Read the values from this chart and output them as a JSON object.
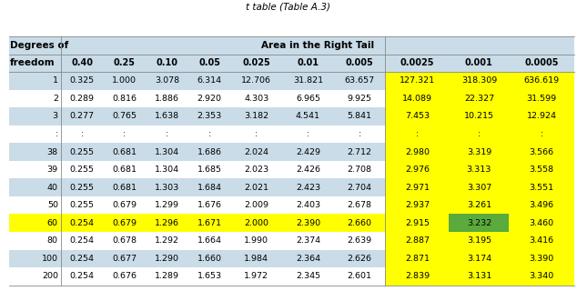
{
  "title": "t table (Table A.3)",
  "header_row1_left": "Degrees of",
  "header_row1_right": "Area in the Right Tail",
  "header_row2_left": "freedom",
  "col_headers": [
    "0.40",
    "0.25",
    "0.10",
    "0.05",
    "0.025",
    "0.01",
    "0.005",
    "0.0025",
    "0.001",
    "0.0005"
  ],
  "rows": [
    [
      "1",
      "0.325",
      "1.000",
      "3.078",
      "6.314",
      "12.706",
      "31.821",
      "63.657",
      "127.321",
      "318.309",
      "636.619"
    ],
    [
      "2",
      "0.289",
      "0.816",
      "1.886",
      "2.920",
      "4.303",
      "6.965",
      "9.925",
      "14.089",
      "22.327",
      "31.599"
    ],
    [
      "3",
      "0.277",
      "0.765",
      "1.638",
      "2.353",
      "3.182",
      "4.541",
      "5.841",
      "7.453",
      "10.215",
      "12.924"
    ],
    [
      ":",
      ":",
      ":",
      ":",
      ":",
      ":",
      ":",
      ":",
      ":",
      ":",
      ":"
    ],
    [
      "38",
      "0.255",
      "0.681",
      "1.304",
      "1.686",
      "2.024",
      "2.429",
      "2.712",
      "2.980",
      "3.319",
      "3.566"
    ],
    [
      "39",
      "0.255",
      "0.681",
      "1.304",
      "1.685",
      "2.023",
      "2.426",
      "2.708",
      "2.976",
      "3.313",
      "3.558"
    ],
    [
      "40",
      "0.255",
      "0.681",
      "1.303",
      "1.684",
      "2.021",
      "2.423",
      "2.704",
      "2.971",
      "3.307",
      "3.551"
    ],
    [
      "50",
      "0.255",
      "0.679",
      "1.299",
      "1.676",
      "2.009",
      "2.403",
      "2.678",
      "2.937",
      "3.261",
      "3.496"
    ],
    [
      "60",
      "0.254",
      "0.679",
      "1.296",
      "1.671",
      "2.000",
      "2.390",
      "2.660",
      "2.915",
      "3.232",
      "3.460"
    ],
    [
      "80",
      "0.254",
      "0.678",
      "1.292",
      "1.664",
      "1.990",
      "2.374",
      "2.639",
      "2.887",
      "3.195",
      "3.416"
    ],
    [
      "100",
      "0.254",
      "0.677",
      "1.290",
      "1.660",
      "1.984",
      "2.364",
      "2.626",
      "2.871",
      "3.174",
      "3.390"
    ],
    [
      "200",
      "0.254",
      "0.676",
      "1.289",
      "1.653",
      "1.972",
      "2.345",
      "2.601",
      "2.839",
      "3.131",
      "3.340"
    ]
  ],
  "blue_rows_data": [
    0,
    2,
    4,
    6,
    8,
    10
  ],
  "yellow_row_data": 8,
  "green_cell_row": 8,
  "green_cell_col": 9,
  "yellow_cols": [
    8,
    9,
    10
  ],
  "color_blue_light": "#c9dce8",
  "color_white": "#ffffff",
  "color_yellow": "#ffff00",
  "color_green": "#5aaa3c",
  "color_header_bg": "#c9dce8",
  "color_line": "#888888"
}
